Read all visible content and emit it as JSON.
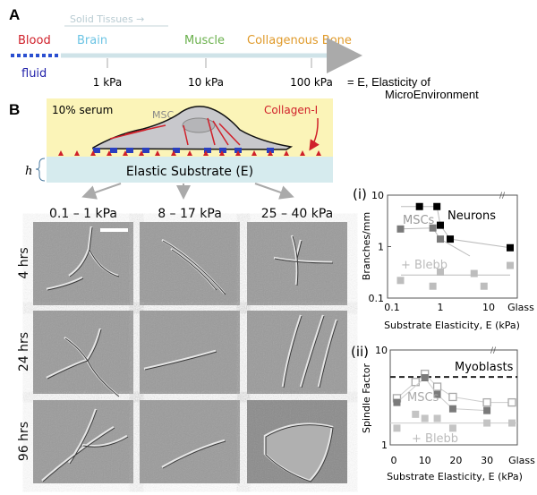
{
  "panel_a": {
    "letter": "A",
    "solid_tissues": "Solid Tissues →",
    "tissues": [
      {
        "label": "Blood",
        "color": "#d0202a"
      },
      {
        "label": "Brain",
        "color": "#6cc4e4"
      },
      {
        "label": "Muscle",
        "color": "#6ab04c"
      },
      {
        "label": "Collagenous Bone",
        "color": "#e09a2a"
      }
    ],
    "fluid": "fluid",
    "ticks": [
      "1 kPa",
      "10 kPa",
      "100 kPa"
    ],
    "equation": "= E, Elasticity of",
    "equation_line2": "MicroEnvironment"
  },
  "panel_b": {
    "letter": "B",
    "serum": "10%  serum",
    "cell": "MSC",
    "collagen": "Collagen-I",
    "h": "h",
    "substrate": "Elastic Substrate (E)",
    "columns": [
      "0.1 – 1 kPa",
      "8 – 17 kPa",
      "25 – 40 kPa"
    ],
    "rows": [
      "4 hrs",
      "24 hrs",
      "96 hrs"
    ],
    "colors": {
      "serum_bg": "#fbf4b8",
      "substrate_bg": "#d6ebee",
      "collagen": "#d0202a",
      "integrin": "#2a3fc0"
    }
  },
  "chart_data": [
    {
      "panel": "(i)",
      "type": "scatter",
      "xlabel": "Substrate Elasticity, E (kPa)",
      "ylabel": "Branches/mm",
      "xscale": "log",
      "yscale": "log",
      "xlim": [
        0.1,
        10
      ],
      "ylim": [
        0.1,
        10
      ],
      "xticks": [
        "0.1",
        "1",
        "10",
        "Glass"
      ],
      "yticks": [
        "10",
        "1",
        "0.1"
      ],
      "series": [
        {
          "name": "Neurons",
          "color": "#000000",
          "points": [
            [
              0.37,
              6
            ],
            [
              0.85,
              6
            ],
            [
              1.0,
              2.6
            ],
            [
              1.6,
              1.4
            ],
            [
              "Glass",
              0.95
            ]
          ]
        },
        {
          "name": "MSCs",
          "color": "#7a7a7a",
          "points": [
            [
              0.15,
              2.2
            ],
            [
              0.7,
              2.3
            ],
            [
              1.0,
              1.4
            ]
          ]
        },
        {
          "name": "+ Blebb",
          "color": "#bdbdbd",
          "points": [
            [
              0.15,
              0.22
            ],
            [
              0.7,
              0.17
            ],
            [
              1.0,
              0.32
            ],
            [
              5,
              0.3
            ],
            [
              8,
              0.17
            ],
            [
              "Glass",
              0.43
            ]
          ]
        }
      ]
    },
    {
      "panel": "(ii)",
      "type": "scatter",
      "xlabel": "Substrate Elasticity, E (kPa)",
      "ylabel": "Spindle Factor",
      "yscale": "log",
      "xlim": [
        0,
        30
      ],
      "ylim": [
        1,
        10
      ],
      "xticks": [
        "0",
        "10",
        "20",
        "30",
        "Glass"
      ],
      "yticks": [
        "10",
        "1"
      ],
      "reference_line": {
        "name": "Myoblasts",
        "value": 5.2
      },
      "series": [
        {
          "name": "MSCs",
          "marker": "open",
          "color": "#a8a8a8",
          "points": [
            [
              1,
              3.1
            ],
            [
              7,
              4.6
            ],
            [
              10,
              5.6
            ],
            [
              14,
              4.1
            ],
            [
              19,
              3.2
            ],
            [
              30,
              2.8
            ],
            [
              "Glass",
              2.8
            ]
          ]
        },
        {
          "marker": "filled",
          "color": "#7a7a7a",
          "points": [
            [
              1,
              2.8
            ],
            [
              10,
              5.1
            ],
            [
              14,
              3.4
            ],
            [
              19,
              2.4
            ],
            [
              30,
              2.3
            ]
          ]
        },
        {
          "name": "+ Blebb",
          "marker": "filled",
          "color": "#c4c4c4",
          "points": [
            [
              1,
              1.5
            ],
            [
              7,
              2.1
            ],
            [
              10,
              1.9
            ],
            [
              14,
              1.9
            ],
            [
              19,
              1.5
            ],
            [
              30,
              1.7
            ],
            [
              "Glass",
              1.7
            ]
          ]
        }
      ]
    }
  ]
}
